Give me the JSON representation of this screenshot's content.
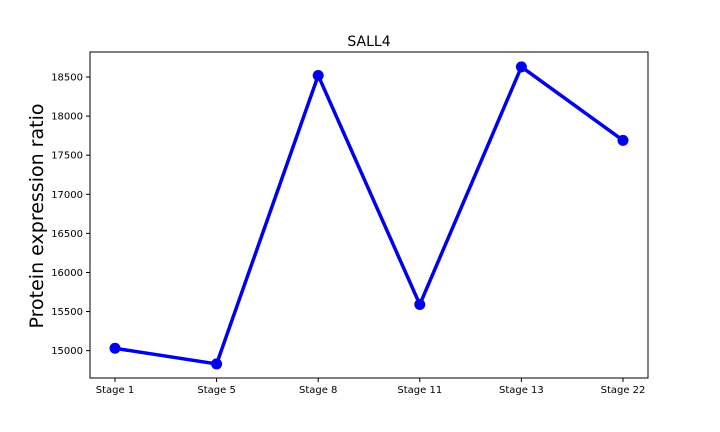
{
  "chart_data": {
    "type": "line",
    "title": "SALL4",
    "xlabel": "",
    "ylabel": "Protein expression ratio",
    "categories": [
      "Stage 1",
      "Stage 5",
      "Stage 8",
      "Stage 11",
      "Stage 13",
      "Stage 22"
    ],
    "series": [
      {
        "values": [
          15030,
          14830,
          18520,
          15590,
          18630,
          17690
        ],
        "color": "#0000ee"
      }
    ],
    "yticks": [
      15000,
      15500,
      16000,
      16500,
      17000,
      17500,
      18000,
      18500
    ],
    "ytick_labels": [
      "15000",
      "15500",
      "16000",
      "16500",
      "17000",
      "17500",
      "18000",
      "18500"
    ],
    "ylim": [
      14650,
      18820
    ],
    "grid": false,
    "legend": "none"
  }
}
